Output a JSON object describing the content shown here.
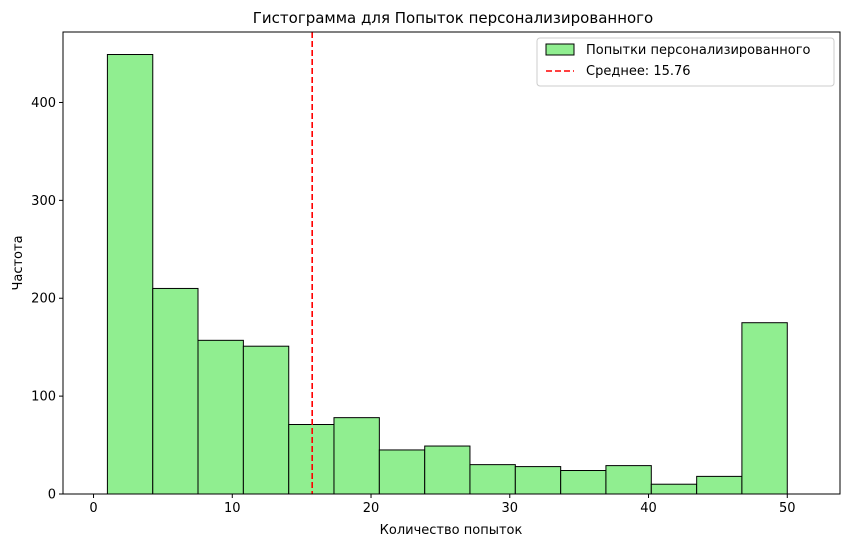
{
  "chart_data": {
    "type": "bar",
    "title": "Гистограмма для Попыток персонализированного",
    "xlabel": "Количество попыток",
    "ylabel": "Частота",
    "xlim": [
      -2.2,
      53.8
    ],
    "ylim": [
      0,
      472
    ],
    "x_ticks": [
      0,
      10,
      20,
      30,
      40,
      50
    ],
    "y_ticks": [
      0,
      100,
      200,
      300,
      400
    ],
    "bin_range": [
      1,
      50
    ],
    "bins": [
      {
        "start": 1.0,
        "end": 4.27,
        "count": 449
      },
      {
        "start": 4.27,
        "end": 7.53,
        "count": 210
      },
      {
        "start": 7.53,
        "end": 10.8,
        "count": 157
      },
      {
        "start": 10.8,
        "end": 14.07,
        "count": 151
      },
      {
        "start": 14.07,
        "end": 17.33,
        "count": 71
      },
      {
        "start": 17.33,
        "end": 20.6,
        "count": 78
      },
      {
        "start": 20.6,
        "end": 23.87,
        "count": 45
      },
      {
        "start": 23.87,
        "end": 27.13,
        "count": 49
      },
      {
        "start": 27.13,
        "end": 30.4,
        "count": 30
      },
      {
        "start": 30.4,
        "end": 33.67,
        "count": 28
      },
      {
        "start": 33.67,
        "end": 36.93,
        "count": 24
      },
      {
        "start": 36.93,
        "end": 40.2,
        "count": 29
      },
      {
        "start": 40.2,
        "end": 43.47,
        "count": 10
      },
      {
        "start": 43.47,
        "end": 46.73,
        "count": 18
      },
      {
        "start": 46.73,
        "end": 50.0,
        "count": 175
      }
    ],
    "series": [
      {
        "name": "Попытки персонализированного",
        "color": "#90ee90",
        "edge_color": "#000000"
      }
    ],
    "mean_line": {
      "value": 15.76,
      "label": "Среднее: 15.76",
      "color": "#ff0000",
      "style": "dashed"
    },
    "legend_position": "top-right",
    "grid": false
  }
}
